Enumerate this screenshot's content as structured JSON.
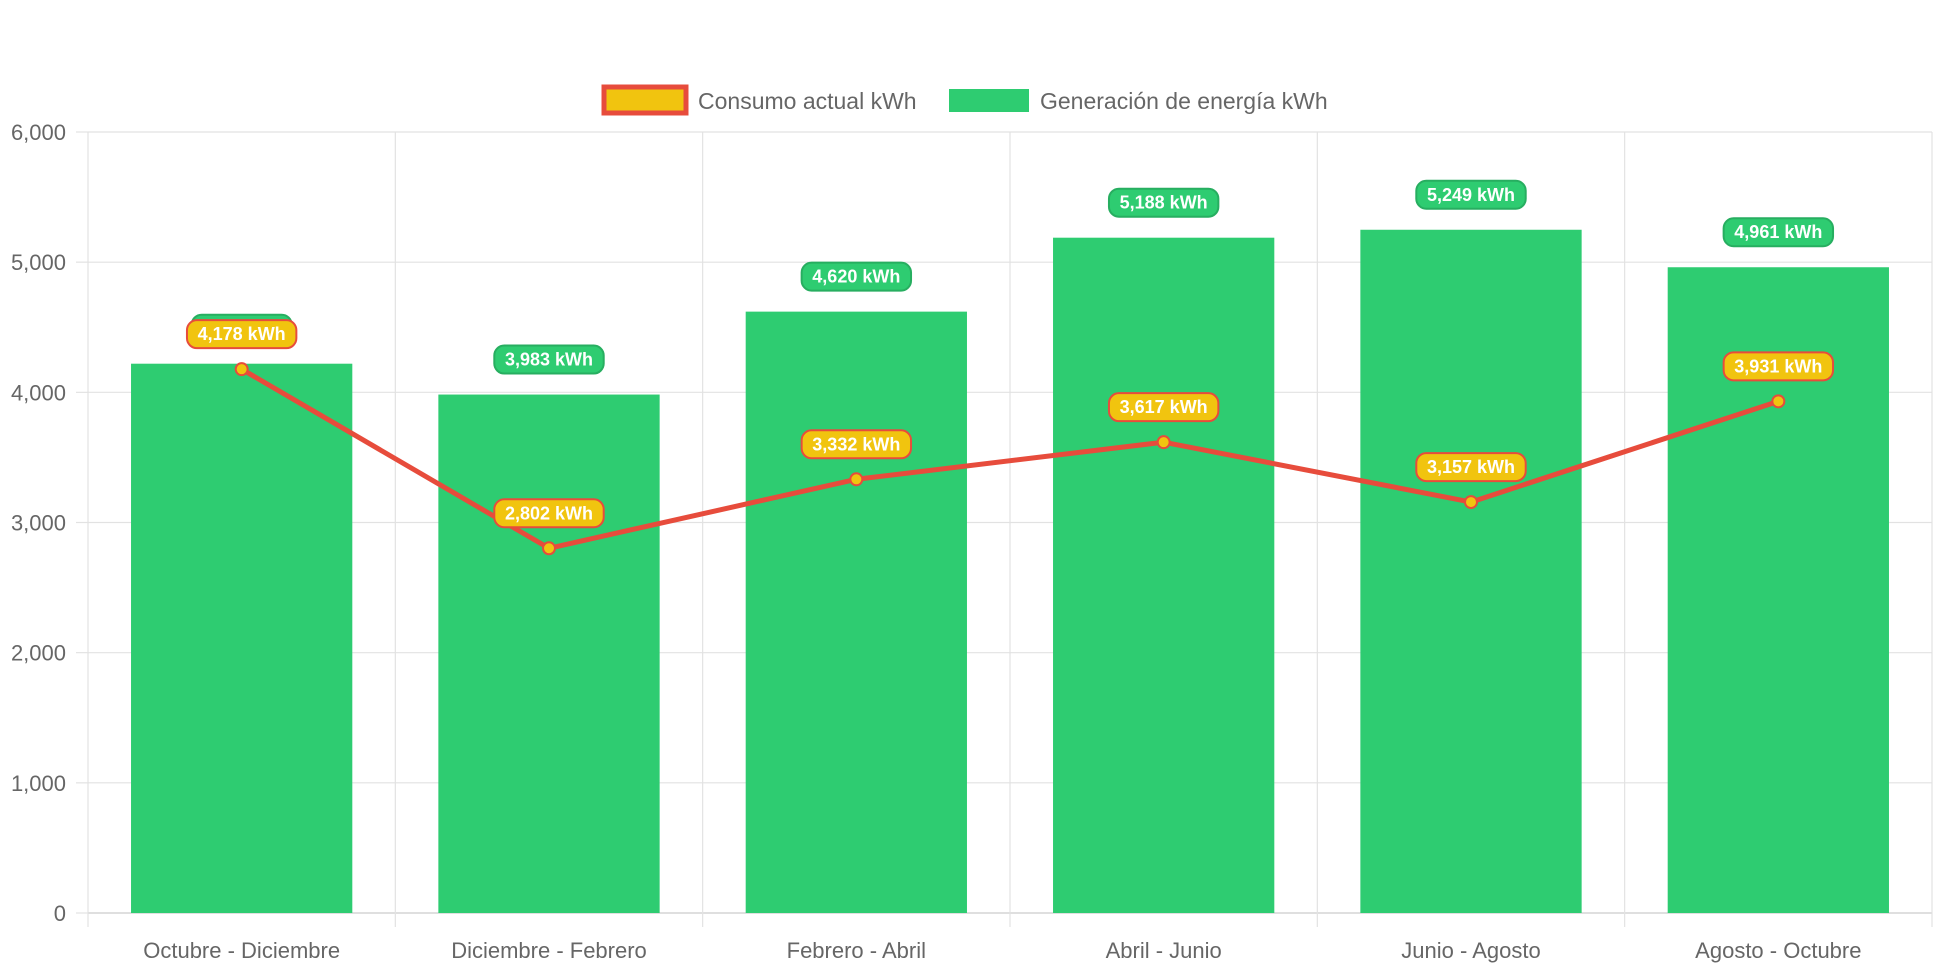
{
  "chart_data": {
    "type": "bar",
    "categories": [
      "Octubre - Diciembre",
      "Diciembre - Febrero",
      "Febrero - Abril",
      "Abril - Junio",
      "Junio - Agosto",
      "Agosto - Octubre"
    ],
    "series": [
      {
        "name": "Consumo actual kWh",
        "type": "line",
        "values": [
          4178,
          2802,
          3332,
          3617,
          3157,
          3931
        ],
        "labels": [
          "4,178 kWh",
          "2,802 kWh",
          "3,332 kWh",
          "3,617 kWh",
          "3,157 kWh",
          "3,931 kWh"
        ],
        "line_color": "#e74c3c",
        "fill_color": "#f1c40f"
      },
      {
        "name": "Generación de energía kWh",
        "type": "bar",
        "values": [
          4220,
          3983,
          4620,
          5188,
          5249,
          4961
        ],
        "labels": [
          "",
          "3,983 kWh",
          "4,620 kWh",
          "5,188 kWh",
          "5,249 kWh",
          "4,961 kWh"
        ],
        "color": "#2ecc71",
        "label_border": "#27ae60"
      }
    ],
    "ylim": [
      0,
      6000
    ],
    "yticks": [
      "0",
      "1,000",
      "2,000",
      "3,000",
      "4,000",
      "5,000",
      "6,000"
    ],
    "ytick_values": [
      0,
      1000,
      2000,
      3000,
      4000,
      5000,
      6000
    ],
    "grid": true,
    "legend_position": "top-center",
    "title": "",
    "xlabel": "",
    "ylabel": ""
  }
}
